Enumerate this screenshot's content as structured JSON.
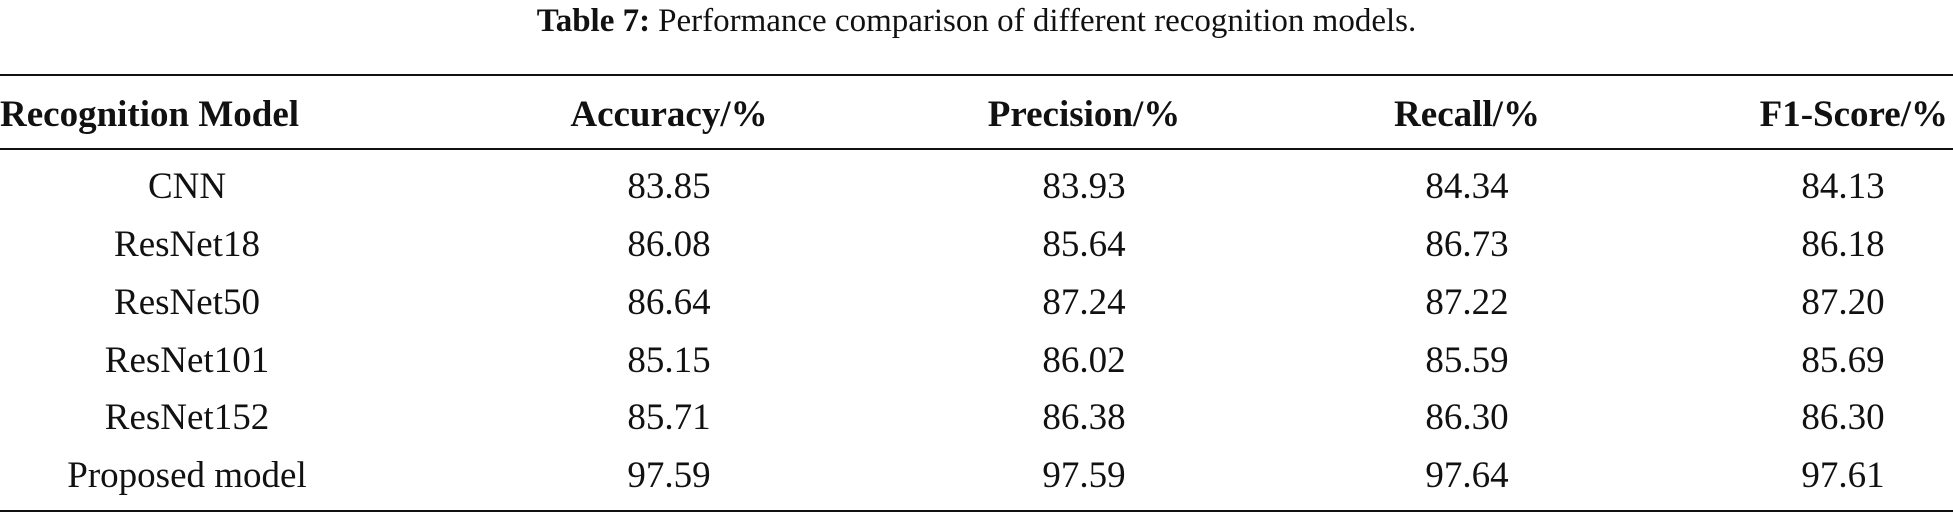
{
  "title": {
    "label": "Table 7:",
    "text": "Performance comparison of different recognition models."
  },
  "table": {
    "header": [
      "Recognition Model",
      "Accuracy/%",
      "Precision/%",
      "Recall/%",
      "F1-Score/%"
    ],
    "rows": [
      [
        "CNN",
        "83.85",
        "83.93",
        "84.34",
        "84.13"
      ],
      [
        "ResNet18",
        "86.08",
        "85.64",
        "86.73",
        "86.18"
      ],
      [
        "ResNet50",
        "86.64",
        "87.24",
        "87.22",
        "87.20"
      ],
      [
        "ResNet101",
        "85.15",
        "86.02",
        "85.59",
        "85.69"
      ],
      [
        "ResNet152",
        "85.71",
        "86.38",
        "86.30",
        "86.30"
      ],
      [
        "Proposed model",
        "97.59",
        "97.59",
        "97.64",
        "97.61"
      ]
    ]
  }
}
